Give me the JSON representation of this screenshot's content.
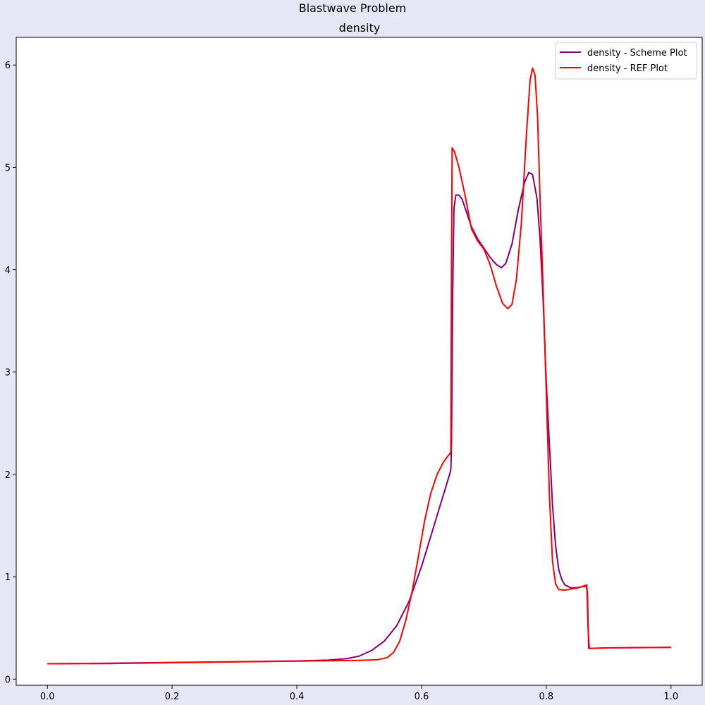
{
  "figure": {
    "suptitle": "Blastwave Problem"
  },
  "colors": {
    "background": "#e6e6f7",
    "axes_face": "#ffffff",
    "scheme": "#800080",
    "ref": "#ff0000"
  },
  "chart_data": {
    "type": "line",
    "title": "density",
    "xlabel": "",
    "ylabel": "",
    "xlim": [
      -0.05,
      1.05
    ],
    "ylim": [
      -0.06,
      6.27
    ],
    "xticks": [
      0.0,
      0.2,
      0.4,
      0.6,
      0.8,
      1.0
    ],
    "xtick_labels": [
      "0.0",
      "0.2",
      "0.4",
      "0.6",
      "0.8",
      "1.0"
    ],
    "yticks": [
      0,
      1,
      2,
      3,
      4,
      5,
      6
    ],
    "ytick_labels": [
      "0",
      "1",
      "2",
      "3",
      "4",
      "5",
      "6"
    ],
    "grid": false,
    "legend_position": "top-right",
    "series": [
      {
        "name": "density - Scheme Plot",
        "color": "#800080",
        "points": [
          [
            0.0,
            0.15
          ],
          [
            0.1,
            0.155
          ],
          [
            0.2,
            0.163
          ],
          [
            0.3,
            0.17
          ],
          [
            0.4,
            0.178
          ],
          [
            0.45,
            0.185
          ],
          [
            0.48,
            0.2
          ],
          [
            0.5,
            0.225
          ],
          [
            0.52,
            0.28
          ],
          [
            0.54,
            0.37
          ],
          [
            0.56,
            0.52
          ],
          [
            0.58,
            0.76
          ],
          [
            0.6,
            1.1
          ],
          [
            0.62,
            1.5
          ],
          [
            0.635,
            1.8
          ],
          [
            0.645,
            2.0
          ],
          [
            0.647,
            2.05
          ],
          [
            0.648,
            2.3
          ],
          [
            0.65,
            3.8
          ],
          [
            0.652,
            4.6
          ],
          [
            0.655,
            4.73
          ],
          [
            0.66,
            4.73
          ],
          [
            0.665,
            4.69
          ],
          [
            0.67,
            4.6
          ],
          [
            0.68,
            4.42
          ],
          [
            0.69,
            4.3
          ],
          [
            0.7,
            4.21
          ],
          [
            0.71,
            4.12
          ],
          [
            0.72,
            4.05
          ],
          [
            0.728,
            4.02
          ],
          [
            0.735,
            4.06
          ],
          [
            0.745,
            4.25
          ],
          [
            0.755,
            4.58
          ],
          [
            0.765,
            4.85
          ],
          [
            0.772,
            4.95
          ],
          [
            0.778,
            4.93
          ],
          [
            0.785,
            4.7
          ],
          [
            0.79,
            4.3
          ],
          [
            0.795,
            3.7
          ],
          [
            0.8,
            2.9
          ],
          [
            0.805,
            2.3
          ],
          [
            0.81,
            1.7
          ],
          [
            0.815,
            1.3
          ],
          [
            0.82,
            1.07
          ],
          [
            0.825,
            0.97
          ],
          [
            0.83,
            0.92
          ],
          [
            0.84,
            0.89
          ],
          [
            0.85,
            0.895
          ],
          [
            0.86,
            0.905
          ],
          [
            0.864,
            0.91
          ],
          [
            0.866,
            0.85
          ],
          [
            0.868,
            0.3
          ],
          [
            0.9,
            0.305
          ],
          [
            1.0,
            0.31
          ]
        ]
      },
      {
        "name": "density - REF Plot",
        "color": "#ff0000",
        "points": [
          [
            0.0,
            0.15
          ],
          [
            0.1,
            0.152
          ],
          [
            0.2,
            0.16
          ],
          [
            0.3,
            0.168
          ],
          [
            0.4,
            0.176
          ],
          [
            0.5,
            0.183
          ],
          [
            0.53,
            0.19
          ],
          [
            0.545,
            0.21
          ],
          [
            0.555,
            0.26
          ],
          [
            0.565,
            0.37
          ],
          [
            0.575,
            0.58
          ],
          [
            0.585,
            0.86
          ],
          [
            0.595,
            1.2
          ],
          [
            0.605,
            1.55
          ],
          [
            0.615,
            1.82
          ],
          [
            0.625,
            2.0
          ],
          [
            0.635,
            2.12
          ],
          [
            0.645,
            2.2
          ],
          [
            0.647,
            2.22
          ],
          [
            0.648,
            4.0
          ],
          [
            0.649,
            5.19
          ],
          [
            0.653,
            5.15
          ],
          [
            0.66,
            5.0
          ],
          [
            0.67,
            4.72
          ],
          [
            0.68,
            4.4
          ],
          [
            0.69,
            4.28
          ],
          [
            0.7,
            4.2
          ],
          [
            0.71,
            4.05
          ],
          [
            0.72,
            3.84
          ],
          [
            0.73,
            3.67
          ],
          [
            0.738,
            3.62
          ],
          [
            0.745,
            3.66
          ],
          [
            0.752,
            3.9
          ],
          [
            0.76,
            4.45
          ],
          [
            0.768,
            5.3
          ],
          [
            0.774,
            5.85
          ],
          [
            0.778,
            5.97
          ],
          [
            0.782,
            5.9
          ],
          [
            0.786,
            5.5
          ],
          [
            0.79,
            4.7
          ],
          [
            0.795,
            3.8
          ],
          [
            0.8,
            2.8
          ],
          [
            0.805,
            1.8
          ],
          [
            0.81,
            1.15
          ],
          [
            0.815,
            0.93
          ],
          [
            0.82,
            0.875
          ],
          [
            0.83,
            0.87
          ],
          [
            0.84,
            0.88
          ],
          [
            0.85,
            0.89
          ],
          [
            0.86,
            0.91
          ],
          [
            0.865,
            0.92
          ],
          [
            0.867,
            0.5
          ],
          [
            0.869,
            0.3
          ],
          [
            0.9,
            0.305
          ],
          [
            1.0,
            0.31
          ]
        ]
      }
    ]
  }
}
